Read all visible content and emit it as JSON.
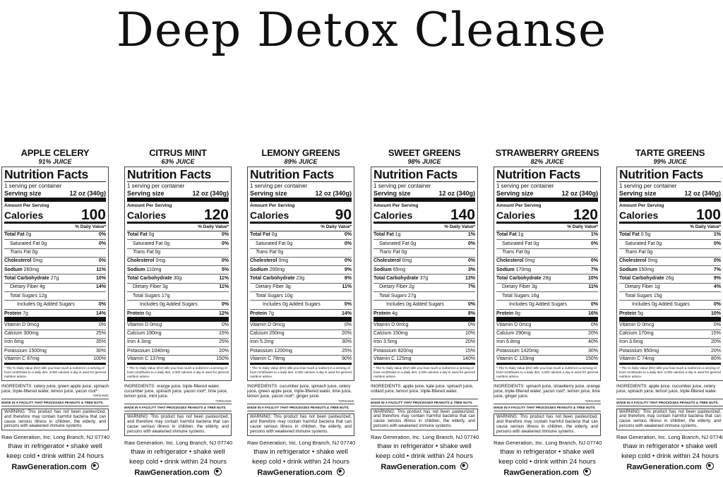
{
  "title": "Deep Detox Cleanse",
  "common": {
    "nutrition_facts": "Nutrition Facts",
    "servings": "1 serving per container",
    "serving_size_label": "Serving size",
    "serving_size": "12 oz (340g)",
    "amount_per_serving": "Amount Per Serving",
    "calories_label": "Calories",
    "daily_value": "% Daily Value*",
    "footnote": "* The % Daily Value (DV) tells you how much a nutrient in a serving of food contributes to a daily diet. 2,000 calories a day is used for general nutrition advice.",
    "facility": "MADE IN A FACILITY THAT PROCESSES PEANUTS & TREE NUTS.",
    "warning": "WARNING: This product has not been pasteurized, and therefore may contain harmful bacteria that can cause serious illness in children, the elderly, and persons with weakened immune systems.",
    "address": "Raw Generation, Inc. Long Branch, NJ 07740",
    "instructions1": "thaw in refrigerator  •  shake well",
    "instructions2": "keep cold  •  drink within 24 hours",
    "website": "RawGeneration.com",
    "globe_icon": "globe-icon"
  },
  "products": [
    {
      "name": "APPLE CELERY",
      "juice": "91% JUICE",
      "calories": "100",
      "nutrients": [
        [
          "Total Fat",
          "0g",
          "0%"
        ],
        [
          "Saturated Fat",
          "0g",
          "0%"
        ],
        [
          "Trans Fat",
          "0g",
          ""
        ],
        [
          "Cholesterol",
          "0mg",
          "0%"
        ],
        [
          "Sodium",
          "260mg",
          "11%"
        ],
        [
          "Total Carbohydrate",
          "27g",
          "10%"
        ],
        [
          "Dietary Fiber",
          "4g",
          "14%"
        ],
        [
          "Total Sugars",
          "12g",
          ""
        ],
        [
          "Includes 0g Added Sugars",
          "",
          "0%"
        ],
        [
          "Protein",
          "7g",
          "14%"
        ]
      ],
      "vitamins": [
        [
          "Vitamin D 0mcg",
          "0%"
        ],
        [
          "Calcium 300mg",
          "25%"
        ],
        [
          "Iron 6mg",
          "35%"
        ],
        [
          "Potassium 1500mg",
          "30%"
        ],
        [
          "Vitamin C 87mg",
          "100%"
        ]
      ],
      "ingredients": "INGREDIENTS: celery juice, green apple juice, spinach juice, triple-filtered water, lemon juice, yacon root*.",
      "organic": "*ORGANIC"
    },
    {
      "name": "CITRUS MINT",
      "juice": "63% JUICE",
      "calories": "120",
      "nutrients": [
        [
          "Total Fat",
          "0g",
          "0%"
        ],
        [
          "Saturated Fat",
          "0g",
          "0%"
        ],
        [
          "Trans Fat",
          "0g",
          ""
        ],
        [
          "Cholesterol",
          "0mg",
          "0%"
        ],
        [
          "Sodium",
          "110mg",
          "5%"
        ],
        [
          "Total Carbohydrate",
          "30g",
          "11%"
        ],
        [
          "Dietary Fiber",
          "3g",
          "11%"
        ],
        [
          "Total Sugars",
          "17g",
          ""
        ],
        [
          "Includes 0g Added Sugars",
          "",
          "0%"
        ],
        [
          "Protein",
          "6g",
          "12%"
        ]
      ],
      "vitamins": [
        [
          "Vitamin D 0mcg",
          "0%"
        ],
        [
          "Calcium 190mg",
          "15%"
        ],
        [
          "Iron 4.3mg",
          "25%"
        ],
        [
          "Potassium 1040mg",
          "20%"
        ],
        [
          "Vitamin C 137mg",
          "150%"
        ]
      ],
      "ingredients": "INGREDIENTS: orange juice, triple-filtered water, cucumber juice, spinach juice, yacon root*, lime juice, lemon juice, mint juice.",
      "organic": "*ORGANIC"
    },
    {
      "name": "LEMONY GREENS",
      "juice": "89% JUICE",
      "calories": "90",
      "nutrients": [
        [
          "Total Fat",
          "0g",
          "0%"
        ],
        [
          "Saturated Fat",
          "0g",
          "0%"
        ],
        [
          "Trans Fat",
          "0g",
          ""
        ],
        [
          "Cholesterol",
          "0mg",
          "0%"
        ],
        [
          "Sodium",
          "200mg",
          "9%"
        ],
        [
          "Total Carbohydrate",
          "23g",
          "8%"
        ],
        [
          "Dietary Fiber",
          "3g",
          "11%"
        ],
        [
          "Total Sugars",
          "10g",
          ""
        ],
        [
          "Includes 0g Added Sugars",
          "",
          "0%"
        ],
        [
          "Protein",
          "7g",
          "14%"
        ]
      ],
      "vitamins": [
        [
          "Vitamin D 0mcg",
          "0%"
        ],
        [
          "Calcium 250mg",
          "20%"
        ],
        [
          "Iron 5.2mg",
          "30%"
        ],
        [
          "Potassium 1200mg",
          "25%"
        ],
        [
          "Vitamin C 78mg",
          "90%"
        ]
      ],
      "ingredients": "INGREDIENTS: cucumber juice, spinach juice, celery juice, green apple juice, triple-filtered water, lime juice, lemon juice, yacon root*, ginger juice.",
      "organic": "*ORGANIC"
    },
    {
      "name": "SWEET GREENS",
      "juice": "98% JUICE",
      "calories": "140",
      "nutrients": [
        [
          "Total Fat",
          "1g",
          "1%"
        ],
        [
          "Saturated Fat",
          "0g",
          "0%"
        ],
        [
          "Trans Fat",
          "0g",
          ""
        ],
        [
          "Cholesterol",
          "0mg",
          "0%"
        ],
        [
          "Sodium",
          "65mg",
          "3%"
        ],
        [
          "Total Carbohydrate",
          "37g",
          "13%"
        ],
        [
          "Dietary Fiber",
          "2g",
          "7%"
        ],
        [
          "Total Sugars",
          "27g",
          ""
        ],
        [
          "Includes 0g Added Sugars",
          "",
          "0%"
        ],
        [
          "Protein",
          "4g",
          "8%"
        ]
      ],
      "vitamins": [
        [
          "Vitamin D 0mcg",
          "0%"
        ],
        [
          "Calcium 150mg",
          "10%"
        ],
        [
          "Iron 3.5mg",
          "20%"
        ],
        [
          "Potassium 820mg",
          "15%"
        ],
        [
          "Vitamin C 125mg",
          "140%"
        ]
      ],
      "ingredients": "INGREDIENTS: apple juice, kale juice, spinach juice, collard juice, lemon juice, triple-filtered water.",
      "organic": ""
    },
    {
      "name": "STRAWBERRY GREENS",
      "juice": "82% JUICE",
      "calories": "120",
      "nutrients": [
        [
          "Total Fat",
          "1g",
          "1%"
        ],
        [
          "Saturated Fat",
          "0g",
          "0%"
        ],
        [
          "Trans Fat",
          "0g",
          ""
        ],
        [
          "Cholesterol",
          "0mg",
          "0%"
        ],
        [
          "Sodium",
          "170mg",
          "7%"
        ],
        [
          "Total Carbohydrate",
          "28g",
          "10%"
        ],
        [
          "Dietary Fiber",
          "3g",
          "11%"
        ],
        [
          "Total Sugars",
          "16g",
          ""
        ],
        [
          "Includes 0g Added Sugars",
          "",
          "0%"
        ],
        [
          "Protein",
          "8g",
          "16%"
        ]
      ],
      "vitamins": [
        [
          "Vitamin D 0mcg",
          "0%"
        ],
        [
          "Calcium 290mg",
          "20%"
        ],
        [
          "Iron 6.8mg",
          "40%"
        ],
        [
          "Potassium 1420mg",
          "30%"
        ],
        [
          "Vitamin C 133mg",
          "150%"
        ]
      ],
      "ingredients": "INGREDIENTS: spinach juice, strawberry juice, orange juice, triple-filtered water, yacon root*, lemon juice, lime juice, ginger juice.",
      "organic": "*ORGANIC"
    },
    {
      "name": "TARTE GREENS",
      "juice": "99% JUICE",
      "calories": "100",
      "nutrients": [
        [
          "Total Fat",
          "0.5g",
          "1%"
        ],
        [
          "Saturated Fat",
          "0g",
          "0%"
        ],
        [
          "Trans Fat",
          "0g",
          ""
        ],
        [
          "Cholesterol",
          "0mg",
          "0%"
        ],
        [
          "Sodium",
          "150mg",
          "7%"
        ],
        [
          "Total Carbohydrate",
          "26g",
          "9%"
        ],
        [
          "Dietary Fiber",
          "1g",
          "4%"
        ],
        [
          "Total Sugars",
          "15g",
          ""
        ],
        [
          "Includes 0g Added Sugars",
          "",
          "0%"
        ],
        [
          "Protein",
          "5g",
          "10%"
        ]
      ],
      "vitamins": [
        [
          "Vitamin D 0mcg",
          "0%"
        ],
        [
          "Calcium 170mg",
          "15%"
        ],
        [
          "Iron 3.6mg",
          "20%"
        ],
        [
          "Potassium 950mg",
          "20%"
        ],
        [
          "Vitamin C 74mg",
          "80%"
        ]
      ],
      "ingredients": "INGREDIENTS: apple juice, cucumber juice, celery juice, spinach juice, lemon juice, triple-filtered water.",
      "organic": ""
    }
  ]
}
